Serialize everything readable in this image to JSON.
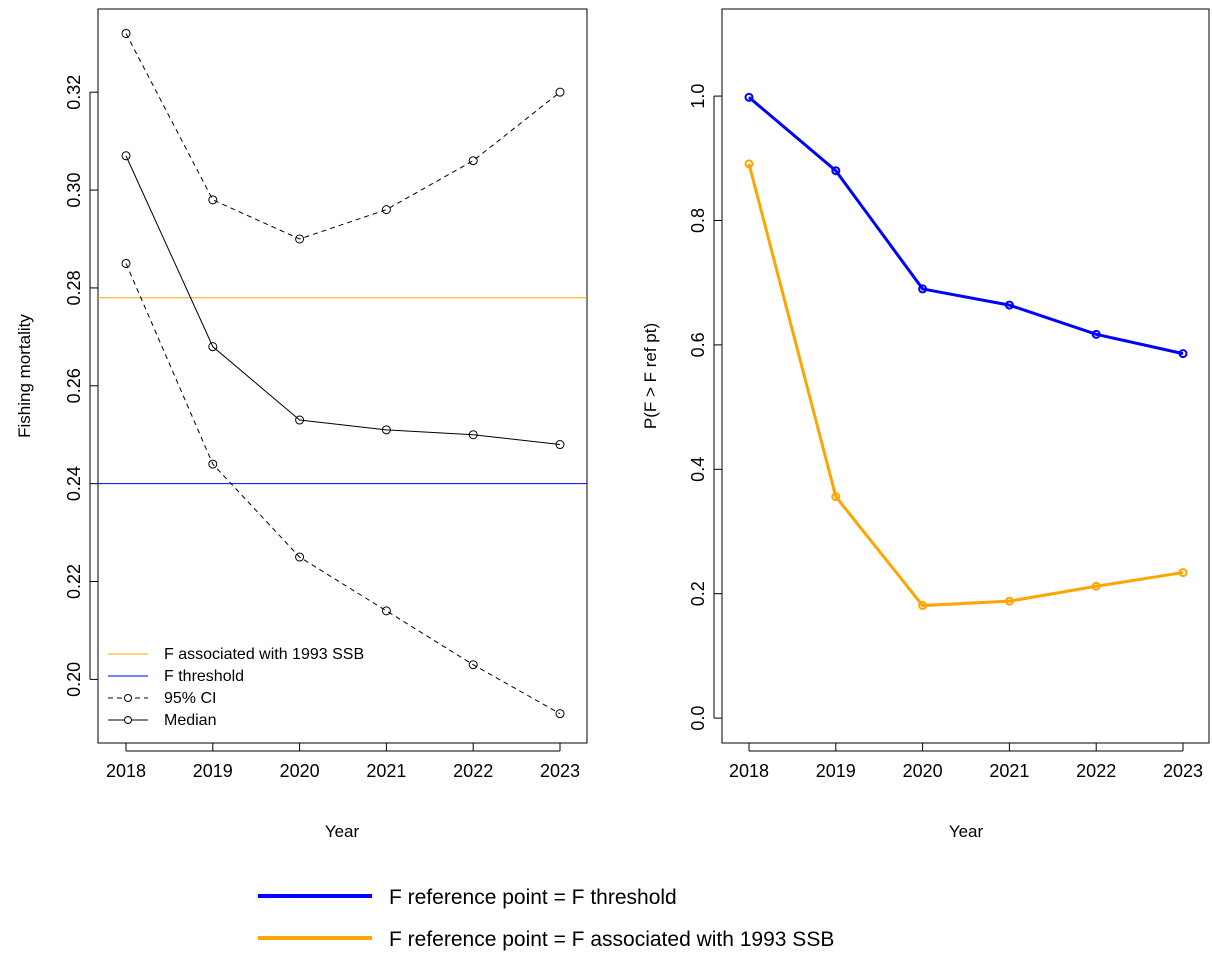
{
  "chart_data": [
    {
      "type": "line",
      "xlabel": "Year",
      "ylabel": "Fishing mortality",
      "x": [
        2018,
        2019,
        2020,
        2021,
        2022,
        2023
      ],
      "x_tick_labels": [
        "2018",
        "2019",
        "2020",
        "2021",
        "2022",
        "2023"
      ],
      "ylim": [
        0.187,
        0.337
      ],
      "y_ticks": [
        0.2,
        0.22,
        0.24,
        0.26,
        0.28,
        0.3,
        0.32
      ],
      "y_tick_labels": [
        "0.20",
        "0.22",
        "0.24",
        "0.26",
        "0.28",
        "0.30",
        "0.32"
      ],
      "grid": false,
      "legend_position": "bottom-left",
      "hlines": [
        {
          "name": "F associated with 1993 SSB",
          "y": 0.278,
          "color": "#ffa500"
        },
        {
          "name": "F threshold",
          "y": 0.24,
          "color": "#0000ff"
        }
      ],
      "series": [
        {
          "name": "95% CI",
          "style": "dashed",
          "color": "#000000",
          "values": [
            0.285,
            0.244,
            0.225,
            0.214,
            0.203,
            0.193
          ]
        },
        {
          "name": "95% CI",
          "style": "dashed",
          "color": "#000000",
          "values": [
            0.332,
            0.298,
            0.29,
            0.296,
            0.306,
            0.32
          ]
        },
        {
          "name": "Median",
          "style": "solid",
          "color": "#000000",
          "values": [
            0.307,
            0.268,
            0.253,
            0.251,
            0.25,
            0.248
          ]
        }
      ],
      "legend": [
        {
          "label": "F associated with 1993 SSB",
          "color": "#ffa500",
          "style": "solid",
          "marker": false
        },
        {
          "label": "F threshold",
          "color": "#0000ff",
          "style": "solid",
          "marker": false
        },
        {
          "label": "95% CI",
          "color": "#000000",
          "style": "dashed",
          "marker": true
        },
        {
          "label": "Median",
          "color": "#000000",
          "style": "solid",
          "marker": true
        }
      ]
    },
    {
      "type": "line",
      "xlabel": "Year",
      "ylabel": "P(F > F ref pt)",
      "x": [
        2018,
        2019,
        2020,
        2021,
        2022,
        2023
      ],
      "x_tick_labels": [
        "2018",
        "2019",
        "2020",
        "2021",
        "2022",
        "2023"
      ],
      "ylim": [
        -0.04,
        1.14
      ],
      "y_ticks": [
        0.0,
        0.2,
        0.4,
        0.6,
        0.8,
        1.0
      ],
      "y_tick_labels": [
        "0.0",
        "0.2",
        "0.4",
        "0.6",
        "0.8",
        "1.0"
      ],
      "grid": false,
      "series": [
        {
          "name": "F reference point = F threshold",
          "color": "#0000ff",
          "values": [
            0.998,
            0.88,
            0.69,
            0.664,
            0.617,
            0.586
          ]
        },
        {
          "name": "F reference point = F associated with 1993 SSB",
          "color": "#ffa500",
          "values": [
            0.891,
            0.356,
            0.181,
            0.188,
            0.212,
            0.234
          ]
        }
      ]
    }
  ],
  "bottom_legend": [
    {
      "label": "F reference point = F threshold",
      "color": "#0000ff"
    },
    {
      "label": "F reference point = F associated with 1993 SSB",
      "color": "#ffa500"
    }
  ]
}
